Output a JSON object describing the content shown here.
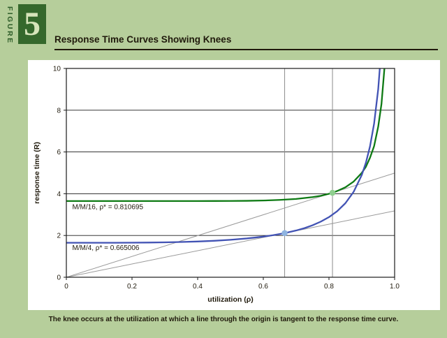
{
  "figure": {
    "label_vertical": "FIGURE",
    "number": "5",
    "title": "Response Time Curves Showing Knees"
  },
  "caption": "The knee occurs at the utilization at which a line through the origin is tangent to the response time curve.",
  "colors": {
    "page_bg": "#b6ce9b",
    "panel_bg": "#ffffff",
    "figure_box": "#35682c",
    "figure_number": "#d6e4ba",
    "figure_label": "#2d5c28",
    "text": "#201a0c",
    "grid": "#1a1a1a",
    "tangent_line": "#9a9a9a",
    "knee_line": "#8c8c8c"
  },
  "chart_data": {
    "type": "line",
    "title": "Response Time Curves Showing Knees",
    "xlabel": "utilization (ρ)",
    "ylabel": "response time (R)",
    "xlim": [
      0,
      1.0
    ],
    "ylim": [
      0,
      10
    ],
    "x_ticks": [
      0,
      0.2,
      0.4,
      0.6,
      0.8,
      1.0
    ],
    "x_tick_labels": [
      "0",
      "0.2",
      "0.4",
      "0.6",
      "0.8",
      "1.0"
    ],
    "y_ticks": [
      0,
      2,
      4,
      6,
      8,
      10
    ],
    "y_tick_labels": [
      "0",
      "2",
      "4",
      "6",
      "8",
      "10"
    ],
    "grid_y": [
      2,
      4,
      6,
      8
    ],
    "legend_position": "inline-labels",
    "series": [
      {
        "name": "M/M/16",
        "label": "M/M/16, ρ* = 0.810695",
        "color": "#0e7a14",
        "dot_color": "#8fcf8f",
        "knee_utilization": 0.810695,
        "knee_point": [
          0.810695,
          4.044
        ],
        "label_pos": [
          0.018,
          3.26
        ],
        "points": [
          [
            0,
            3.65
          ],
          [
            0.1,
            3.65
          ],
          [
            0.2,
            3.65
          ],
          [
            0.3,
            3.65
          ],
          [
            0.4,
            3.651
          ],
          [
            0.45,
            3.652
          ],
          [
            0.5,
            3.654
          ],
          [
            0.55,
            3.661
          ],
          [
            0.6,
            3.674
          ],
          [
            0.65,
            3.703
          ],
          [
            0.7,
            3.749
          ],
          [
            0.75,
            3.837
          ],
          [
            0.775,
            3.9
          ],
          [
            0.8,
            3.998
          ],
          [
            0.810695,
            4.044
          ],
          [
            0.825,
            4.13
          ],
          [
            0.85,
            4.309
          ],
          [
            0.875,
            4.58
          ],
          [
            0.9,
            4.999
          ],
          [
            0.9125,
            5.29
          ],
          [
            0.925,
            5.724
          ],
          [
            0.9375,
            6.28
          ],
          [
            0.95,
            7.21
          ],
          [
            0.96,
            8.3
          ],
          [
            0.97,
            10.2
          ],
          [
            0.975,
            11.6
          ]
        ]
      },
      {
        "name": "M/M/4",
        "label": "M/M/4, ρ* = 0.665006",
        "color": "#4253b4",
        "dot_color": "#8fb4e0",
        "knee_utilization": 0.665006,
        "knee_point": [
          0.665006,
          2.113
        ],
        "label_pos": [
          0.018,
          1.3
        ],
        "points": [
          [
            0,
            1.65
          ],
          [
            0.05,
            1.65
          ],
          [
            0.1,
            1.65
          ],
          [
            0.15,
            1.652
          ],
          [
            0.2,
            1.655
          ],
          [
            0.25,
            1.662
          ],
          [
            0.3,
            1.672
          ],
          [
            0.35,
            1.689
          ],
          [
            0.4,
            1.712
          ],
          [
            0.45,
            1.746
          ],
          [
            0.5,
            1.794
          ],
          [
            0.55,
            1.859
          ],
          [
            0.6,
            1.946
          ],
          [
            0.63,
            2.014
          ],
          [
            0.665,
            2.113
          ],
          [
            0.7,
            2.239
          ],
          [
            0.725,
            2.35
          ],
          [
            0.75,
            2.491
          ],
          [
            0.775,
            2.663
          ],
          [
            0.8,
            2.88
          ],
          [
            0.825,
            3.164
          ],
          [
            0.85,
            3.545
          ],
          [
            0.875,
            4.085
          ],
          [
            0.9,
            4.899
          ],
          [
            0.9125,
            5.484
          ],
          [
            0.925,
            6.264
          ],
          [
            0.9375,
            7.359
          ],
          [
            0.95,
            9.004
          ],
          [
            0.96,
            11.06
          ],
          [
            0.97,
            14.5
          ]
        ]
      }
    ],
    "tangent_lines": [
      {
        "from": [
          0,
          0
        ],
        "to": [
          1.0,
          4.988
        ]
      },
      {
        "from": [
          0,
          0
        ],
        "to": [
          1.0,
          3.177
        ]
      }
    ],
    "knee_vlines": [
      0.810695,
      0.665006
    ]
  }
}
